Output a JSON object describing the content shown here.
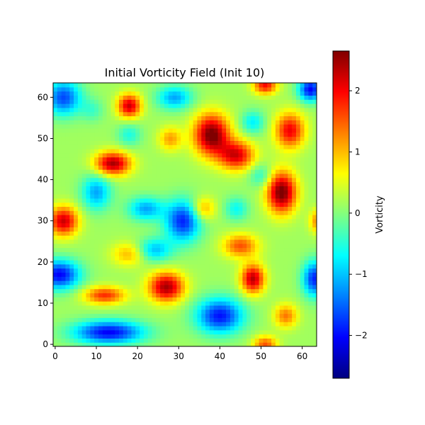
{
  "chart_data": {
    "type": "heatmap",
    "title": "Initial Vorticity Field (Init 10)",
    "xlabel": "",
    "ylabel": "",
    "xlim": [
      -0.5,
      63.5
    ],
    "ylim": [
      -0.5,
      63.5
    ],
    "xticks": [
      0,
      10,
      20,
      30,
      40,
      50,
      60
    ],
    "yticks": [
      0,
      10,
      20,
      30,
      40,
      50,
      60
    ],
    "colormap": "jet",
    "origin": "lower",
    "grid_size": [
      64,
      64
    ],
    "colorbar": {
      "label": "Vorticity",
      "range": [
        -2.7,
        2.65
      ],
      "ticks": [
        -2,
        -1,
        0,
        1,
        2
      ]
    },
    "background_level": 0.15,
    "features": [
      {
        "x": 1,
        "y": 17,
        "value": -2.2,
        "sx": 3.5,
        "sy": 2.5
      },
      {
        "x": 13,
        "y": 3,
        "value": -2.2,
        "sx": 6,
        "sy": 2
      },
      {
        "x": 40,
        "y": 7,
        "value": -2.1,
        "sx": 4,
        "sy": 3
      },
      {
        "x": 31,
        "y": 30,
        "value": -2.0,
        "sx": 3,
        "sy": 3.5
      },
      {
        "x": 2,
        "y": 60,
        "value": -1.8,
        "sx": 3,
        "sy": 3
      },
      {
        "x": 62,
        "y": 62,
        "value": -2.2,
        "sx": 2,
        "sy": 2
      },
      {
        "x": 63,
        "y": 16,
        "value": -2.0,
        "sx": 2,
        "sy": 3
      },
      {
        "x": 22,
        "y": 33,
        "value": -1.3,
        "sx": 3,
        "sy": 2
      },
      {
        "x": 10,
        "y": 37,
        "value": -1.3,
        "sx": 2.5,
        "sy": 3
      },
      {
        "x": 24,
        "y": 23,
        "value": -1.2,
        "sx": 3,
        "sy": 2
      },
      {
        "x": 29,
        "y": 60,
        "value": -1.3,
        "sx": 3,
        "sy": 2
      },
      {
        "x": 48,
        "y": 54,
        "value": -0.9,
        "sx": 2,
        "sy": 2
      },
      {
        "x": 18,
        "y": 51,
        "value": -0.7,
        "sx": 2,
        "sy": 2
      },
      {
        "x": 44,
        "y": 33,
        "value": -0.8,
        "sx": 2,
        "sy": 2
      },
      {
        "x": 50,
        "y": 41,
        "value": -0.7,
        "sx": 2,
        "sy": 2
      },
      {
        "x": 9,
        "y": 57,
        "value": -0.5,
        "sx": 2,
        "sy": 2
      },
      {
        "x": 38,
        "y": 51,
        "value": 2.6,
        "sx": 3,
        "sy": 3.5
      },
      {
        "x": 44,
        "y": 46,
        "value": 2.0,
        "sx": 3,
        "sy": 2.5
      },
      {
        "x": 55,
        "y": 37,
        "value": 2.6,
        "sx": 2.5,
        "sy": 3.5
      },
      {
        "x": 57,
        "y": 52,
        "value": 1.9,
        "sx": 2.5,
        "sy": 3
      },
      {
        "x": 18,
        "y": 58,
        "value": 2.1,
        "sx": 2,
        "sy": 2
      },
      {
        "x": 14,
        "y": 44,
        "value": 2.3,
        "sx": 3,
        "sy": 2
      },
      {
        "x": 2,
        "y": 30,
        "value": 2.1,
        "sx": 2.5,
        "sy": 2.5
      },
      {
        "x": 27,
        "y": 14,
        "value": 2.3,
        "sx": 3,
        "sy": 2.5
      },
      {
        "x": 48,
        "y": 16,
        "value": 2.2,
        "sx": 2,
        "sy": 2.5
      },
      {
        "x": 12,
        "y": 12,
        "value": 1.6,
        "sx": 3.5,
        "sy": 1.5
      },
      {
        "x": 51,
        "y": 63,
        "value": 1.8,
        "sx": 2,
        "sy": 1.5
      },
      {
        "x": 45,
        "y": 24,
        "value": 1.4,
        "sx": 3,
        "sy": 2
      },
      {
        "x": 56,
        "y": 7,
        "value": 1.2,
        "sx": 2,
        "sy": 2
      },
      {
        "x": 51,
        "y": 0,
        "value": 1.4,
        "sx": 2,
        "sy": 1.5
      },
      {
        "x": 64,
        "y": 30,
        "value": 1.2,
        "sx": 1.5,
        "sy": 2
      },
      {
        "x": 28,
        "y": 50,
        "value": 1.0,
        "sx": 2,
        "sy": 2
      },
      {
        "x": 18,
        "y": 22,
        "value": 0.9,
        "sx": 3,
        "sy": 2
      },
      {
        "x": 36,
        "y": 33,
        "value": 1.0,
        "sx": 2,
        "sy": 2
      }
    ]
  }
}
